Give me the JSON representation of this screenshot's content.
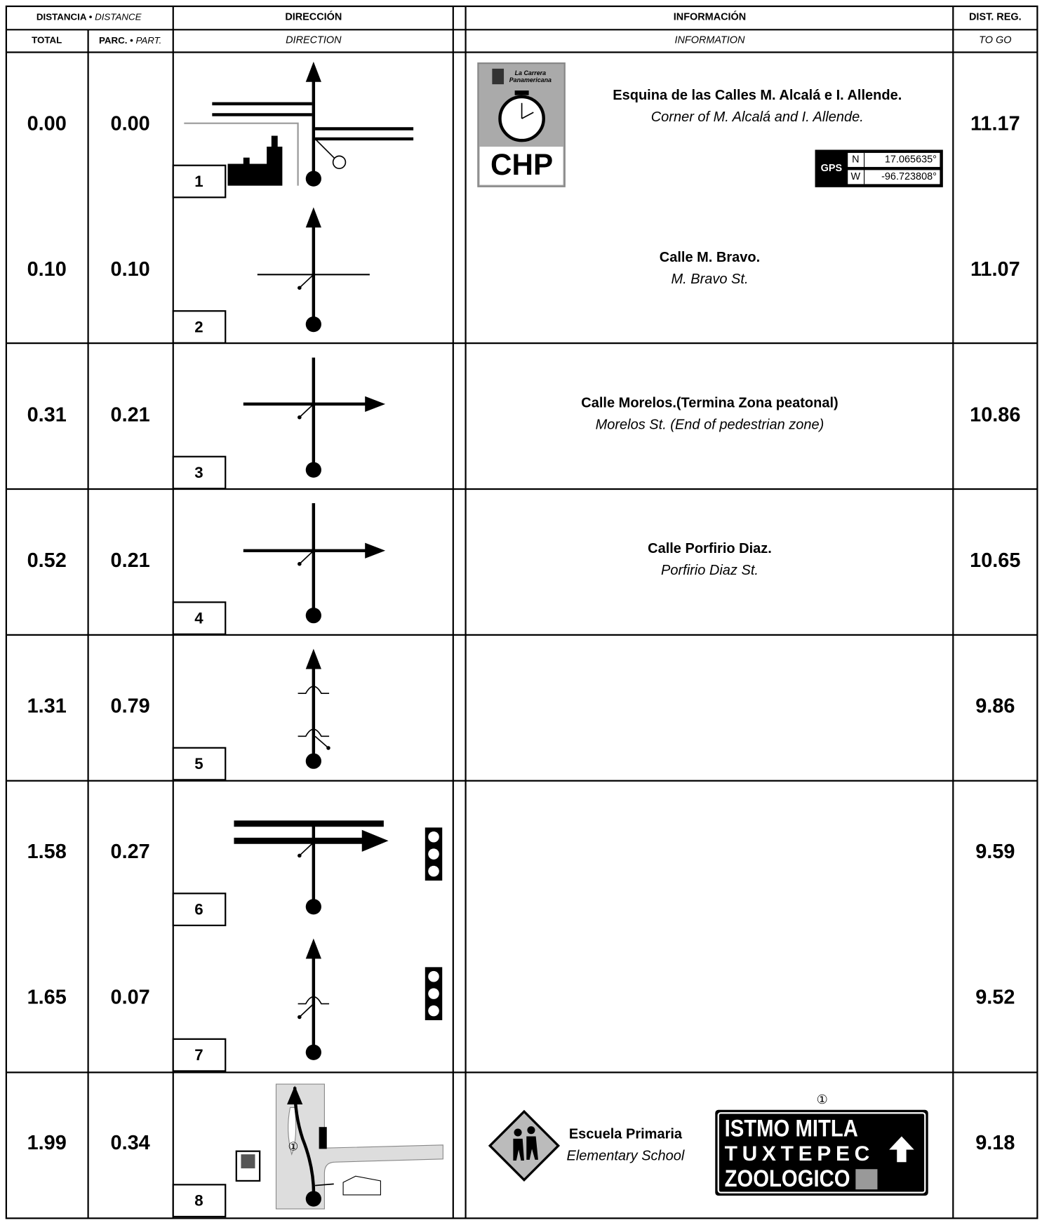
{
  "header": {
    "distance": "DISTANCIA •",
    "distance_en": "DISTANCE",
    "total": "TOTAL",
    "partial": "PARC. •",
    "partial_en": "PART.",
    "direction": "DIRECCIÓN",
    "direction_en": "DIRECTION",
    "information": "INFORMACIÓN",
    "information_en": "INFORMATION",
    "to_go": "DIST. REG.",
    "to_go_en": "TO GO"
  },
  "rows": [
    {
      "number": "1",
      "total": "0.00",
      "partial": "0.00",
      "to_go": "11.17",
      "title": "Esquina de las Calles M. Alcalá e I. Allende.",
      "subtitle": "Corner of M. Alcalá and I. Allende."
    },
    {
      "number": "2",
      "total": "0.10",
      "partial": "0.10",
      "to_go": "11.07",
      "title": "Calle M. Bravo.",
      "subtitle": "M. Bravo St."
    },
    {
      "number": "3",
      "total": "0.31",
      "partial": "0.21",
      "to_go": "10.86",
      "title": "Calle Morelos.(Termina Zona peatonal)",
      "subtitle": "Morelos St. (End of pedestrian zone)"
    },
    {
      "number": "4",
      "total": "0.52",
      "partial": "0.21",
      "to_go": "10.65",
      "title": "Calle Porfirio Diaz.",
      "subtitle": "Porfirio Diaz St."
    },
    {
      "number": "5",
      "total": "1.31",
      "partial": "0.79",
      "to_go": "9.86"
    },
    {
      "number": "6",
      "total": "1.58",
      "partial": "0.27",
      "to_go": "9.59"
    },
    {
      "number": "7",
      "total": "1.65",
      "partial": "0.07",
      "to_go": "9.52"
    },
    {
      "number": "8",
      "total": "1.99",
      "partial": "0.34",
      "to_go": "9.18"
    }
  ],
  "logo": {
    "line1": "La Carrera",
    "line2": "Panamericana",
    "code": "CHP"
  },
  "gps": {
    "label": "GPS",
    "n_label": "N",
    "n": "17.065635°",
    "w_label": "W",
    "w": "-96.723808°"
  },
  "school": {
    "title": "Escuela Primaria",
    "subtitle": "Elementary School"
  },
  "sign": {
    "marker": "①",
    "line1": "ISTMO MITLA",
    "line2": "TUXTEPEC",
    "line3": "ZOOLOGICO"
  },
  "map_marker": "①"
}
